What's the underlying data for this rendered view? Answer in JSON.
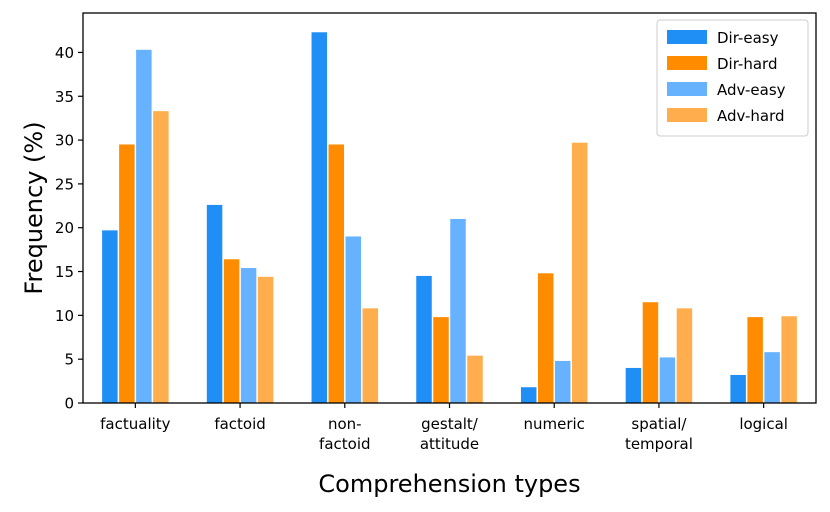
{
  "chart_data": {
    "type": "bar",
    "title": "",
    "xlabel": "Comprehension types",
    "ylabel": "Frequency (%)",
    "ylim": [
      0,
      44.5
    ],
    "yticks": [
      0,
      5,
      10,
      15,
      20,
      25,
      30,
      35,
      40
    ],
    "grid": false,
    "legend_position": "top-right",
    "categories": [
      [
        "factuality"
      ],
      [
        "factoid"
      ],
      [
        "non-",
        "factoid"
      ],
      [
        "gestalt/",
        "attitude"
      ],
      [
        "numeric"
      ],
      [
        "spatial/",
        "temporal"
      ],
      [
        "logical"
      ]
    ],
    "series": [
      {
        "name": "Dir-easy",
        "color": "#1f8ff5",
        "values": [
          19.7,
          22.6,
          42.3,
          14.5,
          1.8,
          4.0,
          3.2
        ]
      },
      {
        "name": "Dir-hard",
        "color": "#ff8c00",
        "values": [
          29.5,
          16.4,
          29.5,
          9.8,
          14.8,
          11.5,
          9.8
        ]
      },
      {
        "name": "Adv-easy",
        "color": "#66b2ff",
        "values": [
          40.3,
          15.4,
          19.0,
          21.0,
          4.8,
          5.2,
          5.8
        ]
      },
      {
        "name": "Adv-hard",
        "color": "#ffad4d",
        "values": [
          33.3,
          14.4,
          10.8,
          5.4,
          29.7,
          10.8,
          9.9
        ]
      }
    ]
  }
}
